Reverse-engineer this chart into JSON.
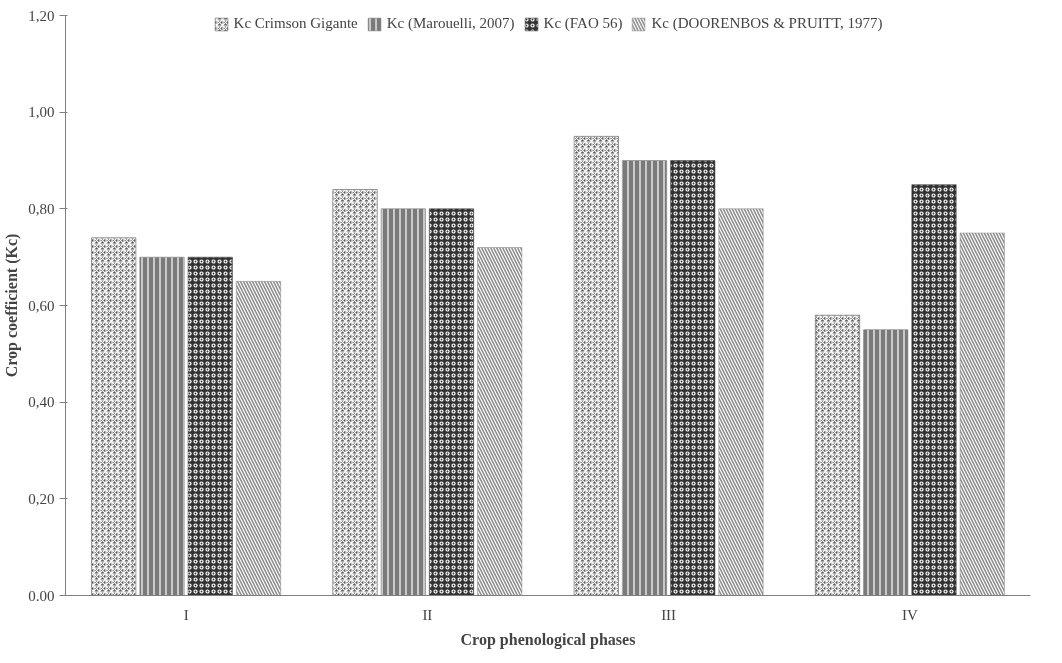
{
  "chart_data": {
    "type": "bar",
    "xlabel": "Crop phenological phases",
    "ylabel": "Crop coefficient (Kc)",
    "categories": [
      "I",
      "II",
      "III",
      "IV"
    ],
    "series": [
      {
        "name": "Kc Crimson Gigante",
        "color": "#5a5a5a",
        "values": [
          0.74,
          0.84,
          0.95,
          0.58
        ]
      },
      {
        "name": "Kc (Marouelli, 2007)",
        "color": "#7a7a7a",
        "values": [
          0.7,
          0.8,
          0.9,
          0.55
        ]
      },
      {
        "name": "Kc (FAO 56)",
        "color": "#333333",
        "values": [
          0.7,
          0.8,
          0.9,
          0.85
        ]
      },
      {
        "name": "Kc (DOORENBOS & PRUITT, 1977)",
        "color": "#8c8c8c",
        "values": [
          0.65,
          0.72,
          0.8,
          0.75
        ]
      }
    ],
    "ylim": [
      0,
      1.2
    ],
    "yticks": [
      {
        "value": 0,
        "label": "0.00"
      },
      {
        "value": 0.2,
        "label": "0,20"
      },
      {
        "value": 0.4,
        "label": "0,40"
      },
      {
        "value": 0.6,
        "label": "0,60"
      },
      {
        "value": 0.8,
        "label": "0,80"
      },
      {
        "value": 1.0,
        "label": "1,00"
      },
      {
        "value": 1.2,
        "label": "1,20"
      }
    ],
    "grid": false,
    "legend": "top"
  }
}
